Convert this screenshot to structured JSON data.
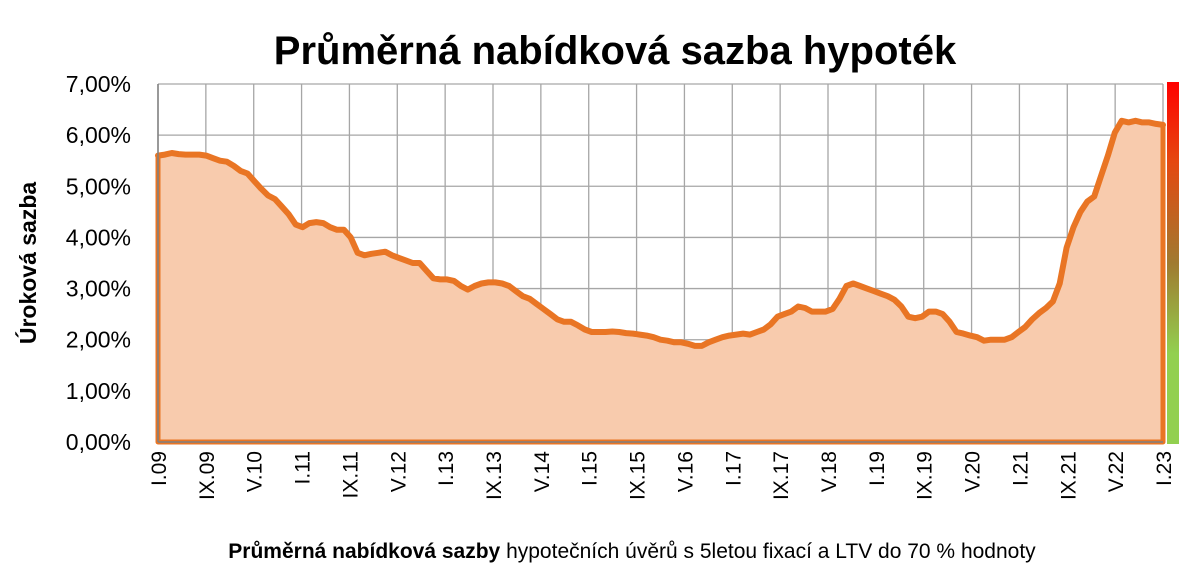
{
  "chart_data": {
    "type": "area",
    "title": "Průměrná nabídková sazba hypoték",
    "ylabel": "Úroková sazba",
    "caption_bold": "Průměrná nabídková sazby",
    "caption_rest": " hypotečních úvěrů s 5letou fixací a LTV do 70 % hodnoty",
    "ylim": [
      0,
      7
    ],
    "y_ticks": [
      "0,00%",
      "1,00%",
      "2,00%",
      "3,00%",
      "4,00%",
      "5,00%",
      "6,00%",
      "7,00%"
    ],
    "x_ticks": [
      "I.09",
      "IX.09",
      "V.10",
      "I.11",
      "IX.11",
      "V.12",
      "I.13",
      "IX.13",
      "V.14",
      "I.15",
      "IX.15",
      "V.16",
      "I.17",
      "IX.17",
      "V.18",
      "I.19",
      "IX.19",
      "V.20",
      "I.21",
      "IX.21",
      "V.22",
      "I.23"
    ],
    "grid": true,
    "series": [
      {
        "values": [
          5.6,
          5.62,
          5.65,
          5.63,
          5.62,
          5.62,
          5.62,
          5.6,
          5.55,
          5.5,
          5.48,
          5.4,
          5.3,
          5.25,
          5.1,
          4.95,
          4.82,
          4.75,
          4.6,
          4.45,
          4.25,
          4.2,
          4.28,
          4.3,
          4.28,
          4.2,
          4.15,
          4.15,
          4.0,
          3.7,
          3.65,
          3.68,
          3.7,
          3.72,
          3.65,
          3.6,
          3.55,
          3.5,
          3.5,
          3.35,
          3.2,
          3.18,
          3.18,
          3.15,
          3.05,
          2.98,
          3.05,
          3.1,
          3.12,
          3.12,
          3.1,
          3.05,
          2.95,
          2.85,
          2.8,
          2.7,
          2.6,
          2.5,
          2.4,
          2.35,
          2.35,
          2.28,
          2.2,
          2.15,
          2.15,
          2.15,
          2.16,
          2.15,
          2.13,
          2.12,
          2.1,
          2.08,
          2.05,
          2.0,
          1.98,
          1.95,
          1.95,
          1.92,
          1.88,
          1.88,
          1.95,
          2.0,
          2.05,
          2.08,
          2.1,
          2.12,
          2.1,
          2.15,
          2.2,
          2.3,
          2.45,
          2.5,
          2.55,
          2.65,
          2.62,
          2.55,
          2.55,
          2.55,
          2.6,
          2.8,
          3.05,
          3.1,
          3.05,
          3.0,
          2.95,
          2.9,
          2.85,
          2.78,
          2.65,
          2.45,
          2.42,
          2.45,
          2.55,
          2.55,
          2.5,
          2.35,
          2.15,
          2.12,
          2.08,
          2.05,
          1.98,
          2.0,
          2.0,
          2.0,
          2.05,
          2.15,
          2.25,
          2.4,
          2.52,
          2.62,
          2.75,
          3.1,
          3.8,
          4.2,
          4.5,
          4.7,
          4.8,
          5.2,
          5.6,
          6.05,
          6.28,
          6.25,
          6.28,
          6.25,
          6.25,
          6.22,
          6.2
        ]
      }
    ]
  },
  "colors": {
    "line": "#E97524",
    "fill": "#F8CBAD",
    "grid": "#A6A6A6",
    "axis": "#808080",
    "scale_top": "#FF0000",
    "scale_mid": "#9E7A2E",
    "scale_bottom": "#92D050"
  }
}
